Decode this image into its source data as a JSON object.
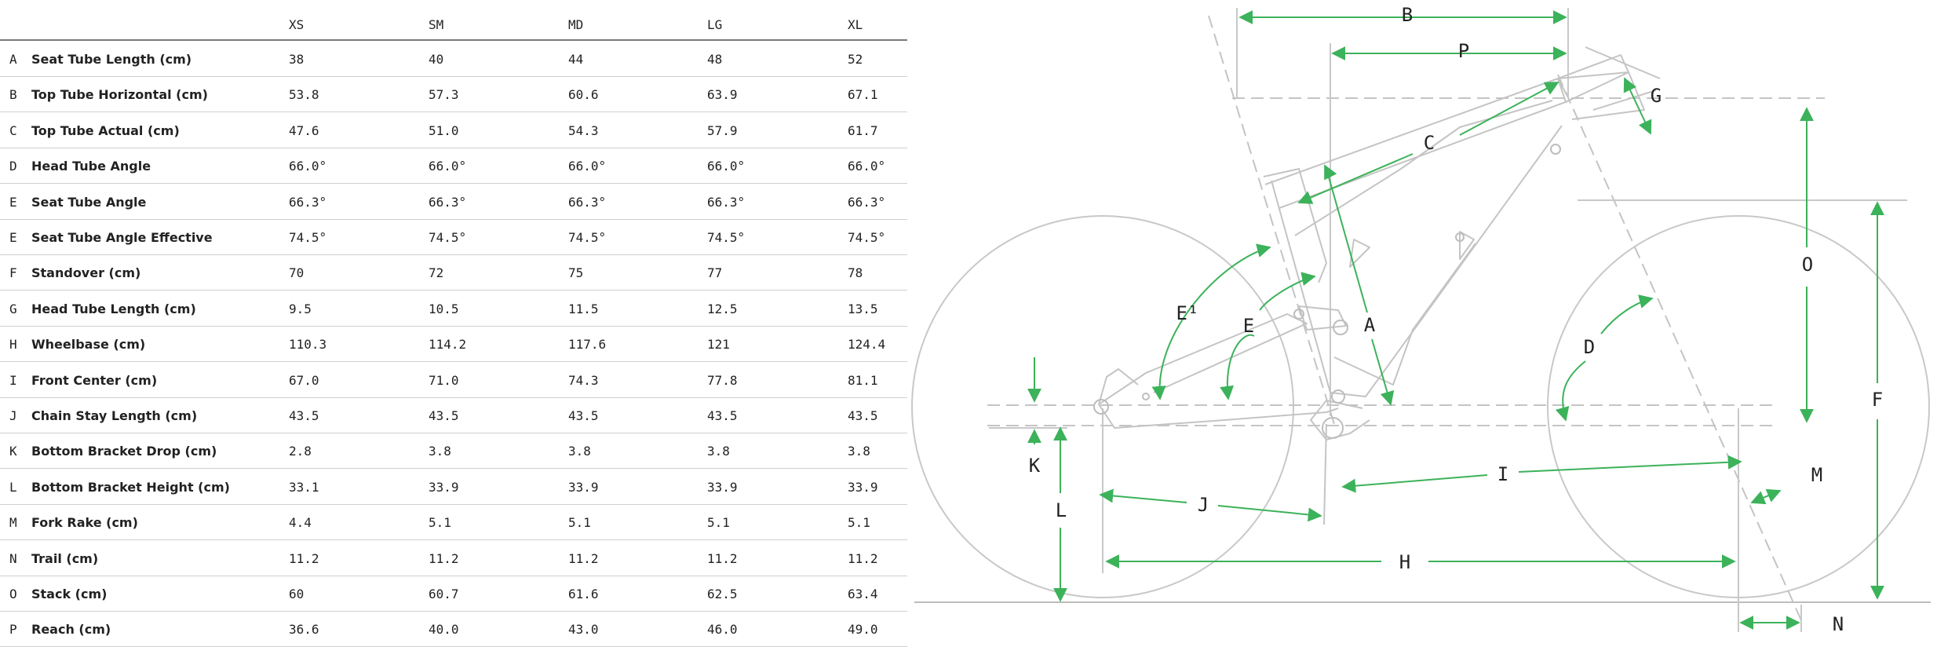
{
  "table": {
    "sizes": [
      "XS",
      "SM",
      "MD",
      "LG",
      "XL"
    ],
    "rows": [
      {
        "letter": "A",
        "label": "Seat Tube Length (cm)",
        "values": [
          "38",
          "40",
          "44",
          "48",
          "52"
        ]
      },
      {
        "letter": "B",
        "label": "Top Tube Horizontal (cm)",
        "values": [
          "53.8",
          "57.3",
          "60.6",
          "63.9",
          "67.1"
        ]
      },
      {
        "letter": "C",
        "label": "Top Tube Actual (cm)",
        "values": [
          "47.6",
          "51.0",
          "54.3",
          "57.9",
          "61.7"
        ]
      },
      {
        "letter": "D",
        "label": "Head Tube Angle",
        "values": [
          "66.0°",
          "66.0°",
          "66.0°",
          "66.0°",
          "66.0°"
        ]
      },
      {
        "letter": "E",
        "label": "Seat Tube Angle",
        "values": [
          "66.3°",
          "66.3°",
          "66.3°",
          "66.3°",
          "66.3°"
        ]
      },
      {
        "letter": "E",
        "label": "Seat Tube Angle Effective",
        "values": [
          "74.5°",
          "74.5°",
          "74.5°",
          "74.5°",
          "74.5°"
        ]
      },
      {
        "letter": "F",
        "label": "Standover (cm)",
        "values": [
          "70",
          "72",
          "75",
          "77",
          "78"
        ]
      },
      {
        "letter": "G",
        "label": "Head Tube Length (cm)",
        "values": [
          "9.5",
          "10.5",
          "11.5",
          "12.5",
          "13.5"
        ]
      },
      {
        "letter": "H",
        "label": "Wheelbase (cm)",
        "values": [
          "110.3",
          "114.2",
          "117.6",
          "121",
          "124.4"
        ]
      },
      {
        "letter": "I",
        "label": "Front Center (cm)",
        "values": [
          "67.0",
          "71.0",
          "74.3",
          "77.8",
          "81.1"
        ]
      },
      {
        "letter": "J",
        "label": "Chain Stay Length (cm)",
        "values": [
          "43.5",
          "43.5",
          "43.5",
          "43.5",
          "43.5"
        ]
      },
      {
        "letter": "K",
        "label": "Bottom Bracket Drop (cm)",
        "values": [
          "2.8",
          "3.8",
          "3.8",
          "3.8",
          "3.8"
        ]
      },
      {
        "letter": "L",
        "label": "Bottom Bracket Height (cm)",
        "values": [
          "33.1",
          "33.9",
          "33.9",
          "33.9",
          "33.9"
        ]
      },
      {
        "letter": "M",
        "label": "Fork Rake (cm)",
        "values": [
          "4.4",
          "5.1",
          "5.1",
          "5.1",
          "5.1"
        ]
      },
      {
        "letter": "N",
        "label": "Trail (cm)",
        "values": [
          "11.2",
          "11.2",
          "11.2",
          "11.2",
          "11.2"
        ]
      },
      {
        "letter": "O",
        "label": "Stack (cm)",
        "values": [
          "60",
          "60.7",
          "61.6",
          "62.5",
          "63.4"
        ]
      },
      {
        "letter": "P",
        "label": "Reach (cm)",
        "values": [
          "36.6",
          "40.0",
          "43.0",
          "46.0",
          "49.0"
        ]
      }
    ]
  },
  "diagram": {
    "labels": {
      "A": "A",
      "B": "B",
      "C": "C",
      "D": "D",
      "E": "E",
      "E1": "E¹",
      "F": "F",
      "G": "G",
      "H": "H",
      "I": "I",
      "J": "J",
      "K": "K",
      "L": "L",
      "M": "M",
      "N": "N",
      "O": "O",
      "P": "P"
    },
    "colors": {
      "arrow": "#3cb25a",
      "frame": "#c4c4c4",
      "text": "#222222"
    }
  }
}
